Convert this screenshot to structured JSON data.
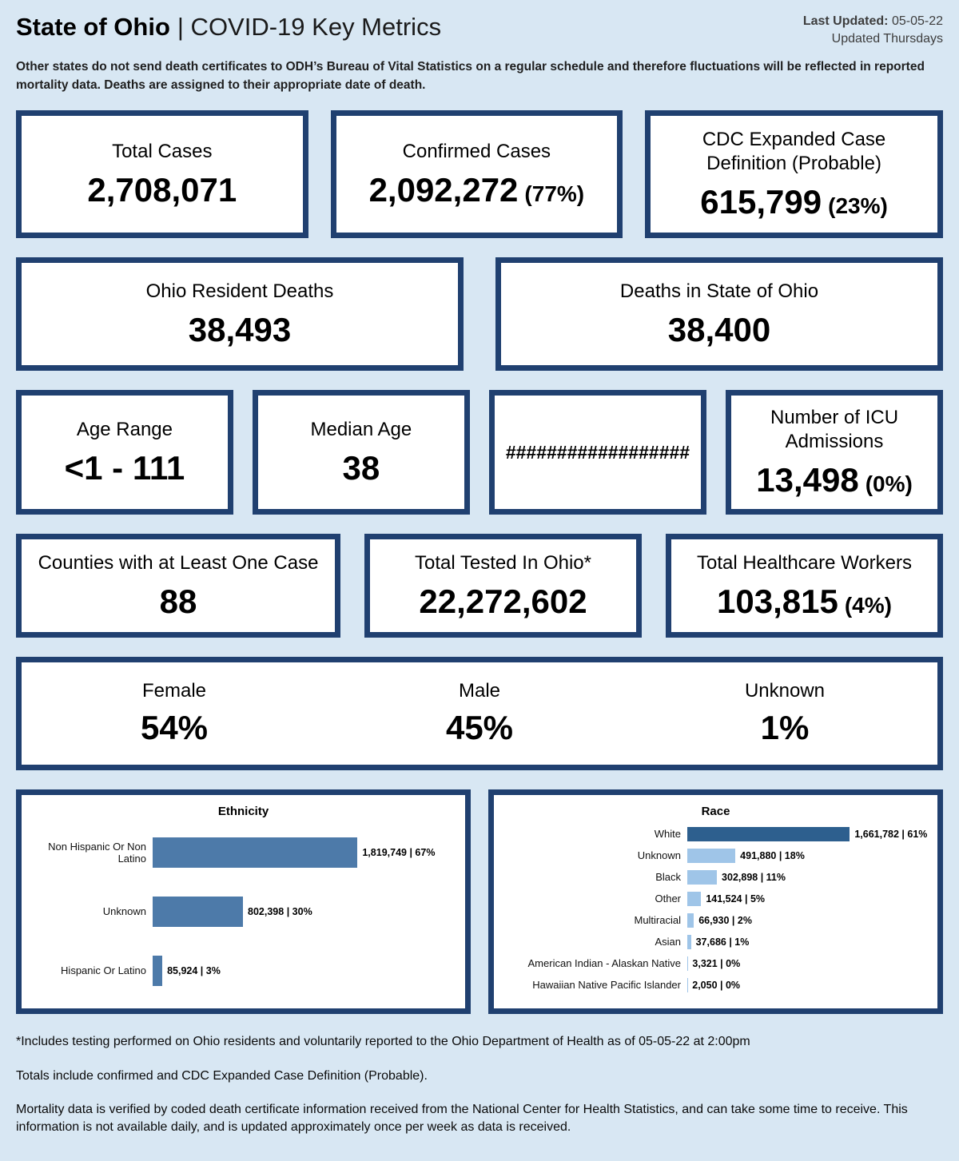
{
  "header": {
    "title_bold": "State of Ohio",
    "title_rest": "| COVID-19 Key Metrics",
    "last_updated_label": "Last Updated:",
    "last_updated_value": "05-05-22",
    "updated_note": "Updated Thursdays"
  },
  "disclaimer": "Other states do not send death certificates to ODH’s Bureau of Vital Statistics on a regular schedule and therefore fluctuations will be reflected in reported mortality data. Deaths are assigned to their appropriate date of death.",
  "cards": {
    "total_cases": {
      "label": "Total Cases",
      "value": "2,708,071"
    },
    "confirmed_cases": {
      "label": "Confirmed Cases",
      "value": "2,092,272",
      "pct": "(77%)"
    },
    "probable_cases": {
      "label": "CDC Expanded Case Definition (Probable)",
      "value": "615,799",
      "pct": "(23%)"
    },
    "resident_deaths": {
      "label": "Ohio Resident Deaths",
      "value": "38,493"
    },
    "deaths_in_state": {
      "label": "Deaths in State of Ohio",
      "value": "38,400"
    },
    "age_range": {
      "label": "Age Range",
      "value": "<1 - 111"
    },
    "median_age": {
      "label": "Median Age",
      "value": "38"
    },
    "hash_placeholder": {
      "value": "##################"
    },
    "icu_admissions": {
      "label": "Number of ICU Admissions",
      "value": "13,498",
      "pct": "(0%)"
    },
    "counties": {
      "label": "Counties with at Least One Case",
      "value": "88"
    },
    "total_tested": {
      "label": "Total Tested In Ohio*",
      "value": "22,272,602"
    },
    "healthcare_workers": {
      "label": "Total Healthcare Workers",
      "value": "103,815",
      "pct": "(4%)"
    }
  },
  "gender": {
    "items": [
      {
        "label": "Female",
        "value": "54%"
      },
      {
        "label": "Male",
        "value": "45%"
      },
      {
        "label": "Unknown",
        "value": "1%"
      }
    ]
  },
  "chart_data": [
    {
      "type": "bar",
      "orientation": "horizontal",
      "title": "Ethnicity",
      "categories": [
        "Non Hispanic Or Non Latino",
        "Unknown",
        "Hispanic Or Latino"
      ],
      "values": [
        1819749,
        802398,
        85924
      ],
      "percents": [
        67,
        30,
        3
      ],
      "labels": [
        "1,819,749 | 67%",
        "802,398 | 30%",
        "85,924 | 3%"
      ],
      "bar_color": "#4d7aa9",
      "xlim": [
        0,
        1819749
      ],
      "grid": false,
      "legend": "none"
    },
    {
      "type": "bar",
      "orientation": "horizontal",
      "title": "Race",
      "categories": [
        "White",
        "Unknown",
        "Black",
        "Other",
        "Multiracial",
        "Asian",
        "American Indian - Alaskan Native",
        "Hawaiian Native Pacific Islander"
      ],
      "values": [
        1661782,
        491880,
        302898,
        141524,
        66930,
        37686,
        3321,
        2050
      ],
      "percents": [
        61,
        18,
        11,
        5,
        2,
        1,
        0,
        0
      ],
      "labels": [
        "1,661,782 | 61%",
        "491,880 | 18%",
        "302,898 | 11%",
        "141,524 | 5%",
        "66,930 | 2%",
        "37,686 | 1%",
        "3,321 | 0%",
        "2,050 | 0%"
      ],
      "bar_colors": [
        "#2d5f8e",
        "#9fc5e8",
        "#9fc5e8",
        "#9fc5e8",
        "#9fc5e8",
        "#9fc5e8",
        "#9fc5e8",
        "#9fc5e8"
      ],
      "xlim": [
        0,
        1661782
      ],
      "grid": false,
      "legend": "none"
    }
  ],
  "footnotes": [
    "*Includes testing performed on Ohio residents and voluntarily reported to the Ohio Department of Health as of 05-05-22 at 2:00pm",
    "Totals include confirmed and CDC Expanded Case Definition (Probable).",
    "Mortality data is verified by coded death certificate information received from the National Center for Health Statistics, and can take some time to receive. This information is not available daily, and is updated approximately once per week as data is received."
  ],
  "colors": {
    "background": "#d8e7f3",
    "card_border": "#204070",
    "ethnicity_bar": "#4d7aa9",
    "race_bar_primary": "#2d5f8e",
    "race_bar_secondary": "#9fc5e8"
  }
}
